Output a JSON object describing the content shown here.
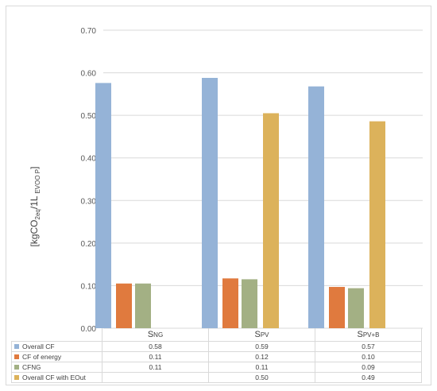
{
  "chart_data": {
    "type": "bar",
    "ylabel": "[kgCO2eq/1L EVOO P]",
    "ylim": [
      0,
      0.7
    ],
    "yticks": [
      "0.00",
      "0.10",
      "0.20",
      "0.30",
      "0.40",
      "0.50",
      "0.60",
      "0.70"
    ],
    "grid": true,
    "legend": "data-table",
    "categories": [
      {
        "main": "S",
        "sub": "NG"
      },
      {
        "main": "S",
        "sub": "PV"
      },
      {
        "main": "S",
        "sub": "PV+B"
      }
    ],
    "series": [
      {
        "name": "Overall CF",
        "color": "#95b3d7",
        "values": [
          0.576,
          0.588,
          0.568
        ],
        "labels": [
          "0.58",
          "0.59",
          "0.57"
        ]
      },
      {
        "name": "CF of energy",
        "color": "#e07a3e",
        "values": [
          0.105,
          0.117,
          0.097
        ],
        "labels": [
          "0.11",
          "0.12",
          "0.10"
        ]
      },
      {
        "name": "CFNG",
        "nameMain": "CF",
        "nameSub": "NG",
        "color": "#a3b084",
        "values": [
          0.105,
          0.115,
          0.094
        ],
        "labels": [
          "0.11",
          "0.11",
          "0.09"
        ]
      },
      {
        "name": "Overall CF with EOut",
        "color": "#dcb25b",
        "values": [
          null,
          0.505,
          0.486
        ],
        "labels": [
          "",
          "0.50",
          "0.49"
        ]
      }
    ]
  }
}
